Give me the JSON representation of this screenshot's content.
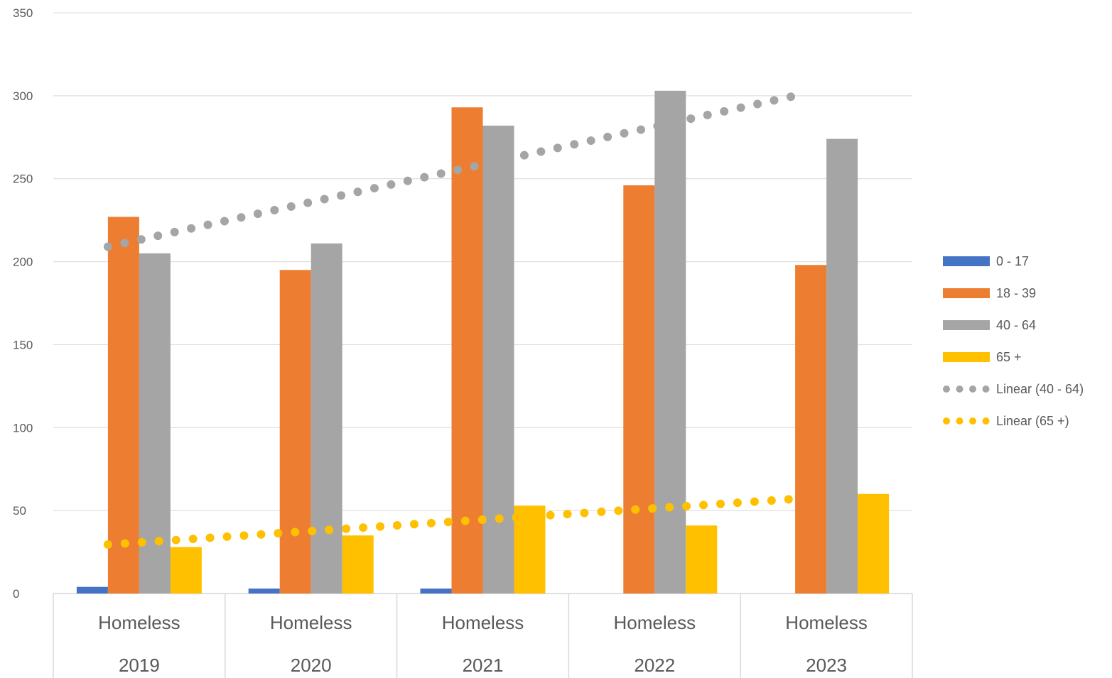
{
  "chart_data": {
    "type": "bar",
    "title": "",
    "xlabel": "",
    "ylabel": "",
    "ylim": [
      0,
      350
    ],
    "yticks": [
      0,
      50,
      100,
      150,
      200,
      250,
      300,
      350
    ],
    "grid": true,
    "legend_position": "right",
    "categories": [
      {
        "label": "Homeless",
        "group": "2019"
      },
      {
        "label": "Homeless",
        "group": "2020"
      },
      {
        "label": "Homeless",
        "group": "2021"
      },
      {
        "label": "Homeless",
        "group": "2022"
      },
      {
        "label": "Homeless",
        "group": "2023"
      }
    ],
    "series": [
      {
        "name": "0 - 17",
        "color": "#4472C4",
        "values": [
          4,
          3,
          3,
          0,
          0
        ]
      },
      {
        "name": "18 - 39",
        "color": "#ED7D31",
        "values": [
          227,
          195,
          293,
          246,
          198
        ]
      },
      {
        "name": "40 - 64",
        "color": "#A5A5A5",
        "values": [
          205,
          211,
          282,
          303,
          274
        ]
      },
      {
        "name": "65 +",
        "color": "#FFC000",
        "values": [
          28,
          35,
          53,
          41,
          60
        ]
      }
    ],
    "trendlines": [
      {
        "name": "Linear (40 - 64)",
        "color": "#A5A5A5",
        "style": "dotted",
        "start": 209,
        "end": 300
      },
      {
        "name": "Linear (65 +)",
        "color": "#FFC000",
        "style": "dotted",
        "start": 29.5,
        "end": 57
      }
    ]
  }
}
